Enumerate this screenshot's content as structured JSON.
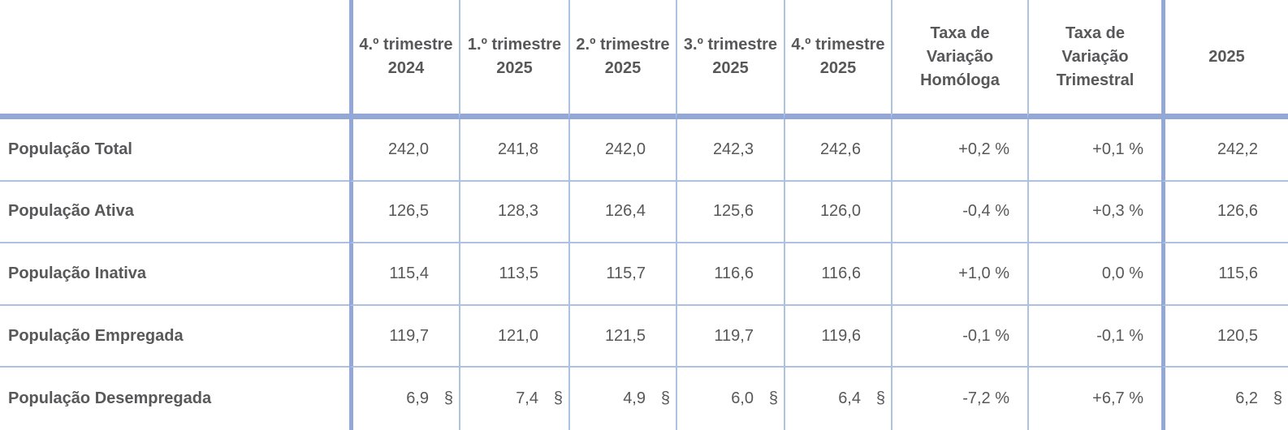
{
  "meta": {
    "description": "Quarterly population statistics table (thousands), Portuguese labels",
    "flag_symbol": "§",
    "colors": {
      "thick_rule": "#94a8d8",
      "thin_rule": "#adc2e1",
      "text": "#58585a",
      "background": "#ffffff"
    }
  },
  "header": {
    "corner": "",
    "quarters": [
      "4.º trimestre\n2024",
      "1.º trimestre\n2025",
      "2.º trimestre\n2025",
      "3.º trimestre\n2025",
      "4.º trimestre\n2025"
    ],
    "homologa": "Taxa de\nVariação\nHomóloga",
    "trimestral": "Taxa de\nVariação\nTrimestral",
    "annual": "2025"
  },
  "rows": [
    {
      "label": "População Total",
      "q": [
        "242,0",
        "241,8",
        "242,0",
        "242,3",
        "242,6"
      ],
      "qf": [
        "",
        "",
        "",
        "",
        ""
      ],
      "vh": "+0,2 %",
      "vt": "+0,1 %",
      "y": "242,2",
      "yf": ""
    },
    {
      "label": "População Ativa",
      "q": [
        "126,5",
        "128,3",
        "126,4",
        "125,6",
        "126,0"
      ],
      "qf": [
        "",
        "",
        "",
        "",
        ""
      ],
      "vh": "-0,4 %",
      "vt": "+0,3 %",
      "y": "126,6",
      "yf": ""
    },
    {
      "label": "População Inativa",
      "q": [
        "115,4",
        "113,5",
        "115,7",
        "116,6",
        "116,6"
      ],
      "qf": [
        "",
        "",
        "",
        "",
        ""
      ],
      "vh": "+1,0 %",
      "vt": "0,0 %",
      "y": "115,6",
      "yf": ""
    },
    {
      "label": "População Empregada",
      "q": [
        "119,7",
        "121,0",
        "121,5",
        "119,7",
        "119,6"
      ],
      "qf": [
        "",
        "",
        "",
        "",
        ""
      ],
      "vh": "-0,1 %",
      "vt": "-0,1 %",
      "y": "120,5",
      "yf": ""
    },
    {
      "label": "População Desempregada",
      "q": [
        "6,9",
        "7,4",
        "4,9",
        "6,0",
        "6,4"
      ],
      "qf": [
        "§",
        "§",
        "§",
        "§",
        "§"
      ],
      "vh": "-7,2 %",
      "vt": "+6,7 %",
      "y": "6,2",
      "yf": "§"
    }
  ]
}
